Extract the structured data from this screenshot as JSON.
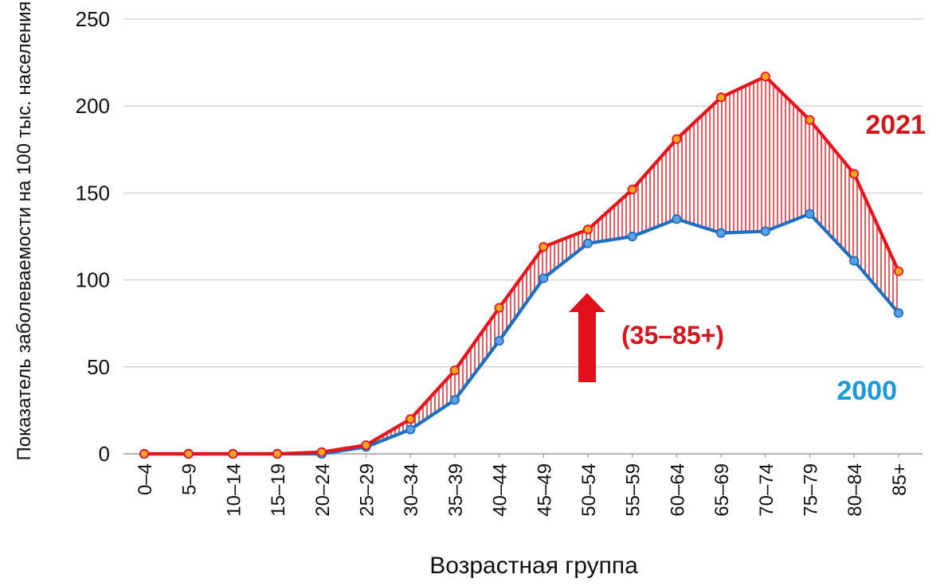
{
  "chart_data": {
    "type": "line",
    "xlabel": "Возрастная группа",
    "ylabel": "Показатель заболеваемости на 100 тыс. населения",
    "ylim": [
      0,
      250
    ],
    "yticks": [
      "0",
      "50",
      "100",
      "150",
      "200",
      "250"
    ],
    "categories": [
      "0–4",
      "5–9",
      "10–14",
      "15–19",
      "20–24",
      "25–29",
      "30–34",
      "35–39",
      "40–44",
      "45–49",
      "50–54",
      "55–59",
      "60–64",
      "65–69",
      "70–74",
      "75–79",
      "80–84",
      "85+"
    ],
    "grid": true,
    "series": [
      {
        "name": "2021",
        "color": "#e8141b",
        "marker_color": "#f5a623",
        "values": [
          0,
          0,
          0,
          0,
          1,
          5,
          20,
          48,
          84,
          119,
          129,
          152,
          181,
          205,
          217,
          192,
          161,
          105
        ]
      },
      {
        "name": "2000",
        "color": "#1e6fc0",
        "marker_color": "#5aa0e6",
        "values": [
          0,
          0,
          0,
          0,
          0,
          4,
          14,
          31,
          65,
          101,
          121,
          125,
          135,
          127,
          128,
          138,
          111,
          81
        ]
      }
    ],
    "label_2021_color": "#d5161c",
    "label_2000_color": "#1a9ad8",
    "annotation": {
      "text": "(35–85+)",
      "arrow_color": "#e1101a",
      "direction": "up"
    }
  }
}
